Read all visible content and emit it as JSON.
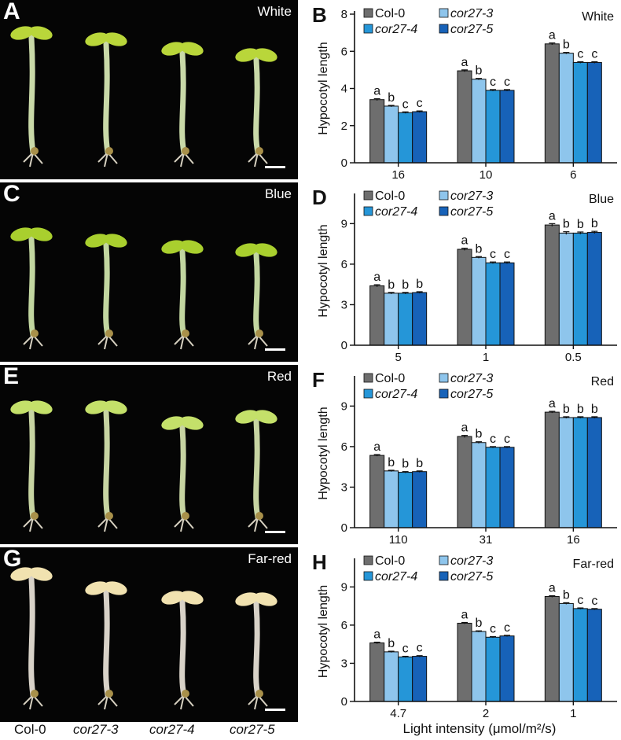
{
  "figure": {
    "xaxis_label": "Light intensity (μmol/m²/s)",
    "genotype_labels": [
      "Col-0",
      "cor27-3",
      "cor27-4",
      "cor27-5"
    ]
  },
  "photos": [
    {
      "label": "A",
      "condition": "White",
      "cotyledon_color": "#b9d63a",
      "hypocotyl_color": "#c9d9a8"
    },
    {
      "label": "C",
      "condition": "Blue",
      "cotyledon_color": "#a9cf2e",
      "hypocotyl_color": "#c2d6a0"
    },
    {
      "label": "E",
      "condition": "Red",
      "cotyledon_color": "#c4e06a",
      "hypocotyl_color": "#c7d4a2"
    },
    {
      "label": "G",
      "condition": "Far-red",
      "cotyledon_color": "#f1e2b0",
      "hypocotyl_color": "#d8d2c8"
    }
  ],
  "colors": {
    "Col-0": "#6e6e6e",
    "cor27-3": "#8ec5ec",
    "cor27-4": "#2596d8",
    "cor27-5": "#1762b8"
  },
  "chart_data": [
    {
      "panel": "B",
      "condition": "White",
      "type": "bar",
      "ylabel": "Hypocotyl length",
      "ylim": [
        0,
        8
      ],
      "yticks": [
        0,
        2,
        4,
        6,
        8
      ],
      "categories": [
        "16",
        "10",
        "6"
      ],
      "series": [
        {
          "name": "Col-0",
          "values": [
            3.4,
            4.95,
            6.4
          ],
          "errors": [
            0.05,
            0.05,
            0.05
          ],
          "letters": [
            "a",
            "a",
            "a"
          ]
        },
        {
          "name": "cor27-3",
          "values": [
            3.05,
            4.5,
            5.9
          ],
          "errors": [
            0.04,
            0.04,
            0.04
          ],
          "letters": [
            "b",
            "b",
            "b"
          ]
        },
        {
          "name": "cor27-4",
          "values": [
            2.7,
            3.9,
            5.4
          ],
          "errors": [
            0.04,
            0.04,
            0.04
          ],
          "letters": [
            "c",
            "c",
            "c"
          ]
        },
        {
          "name": "cor27-5",
          "values": [
            2.75,
            3.9,
            5.4
          ],
          "errors": [
            0.04,
            0.04,
            0.04
          ],
          "letters": [
            "c",
            "c",
            "c"
          ]
        }
      ]
    },
    {
      "panel": "D",
      "condition": "Blue",
      "type": "bar",
      "ylabel": "Hypocotyl length",
      "ylim": [
        0,
        11
      ],
      "yticks": [
        0,
        3,
        6,
        9
      ],
      "categories": [
        "5",
        "1",
        "0.5"
      ],
      "series": [
        {
          "name": "Col-0",
          "values": [
            4.4,
            7.1,
            8.9
          ],
          "errors": [
            0.08,
            0.08,
            0.1
          ],
          "letters": [
            "a",
            "a",
            "a"
          ]
        },
        {
          "name": "cor27-3",
          "values": [
            3.85,
            6.5,
            8.3
          ],
          "errors": [
            0.06,
            0.06,
            0.1
          ],
          "letters": [
            "b",
            "b",
            "b"
          ]
        },
        {
          "name": "cor27-4",
          "values": [
            3.85,
            6.1,
            8.3
          ],
          "errors": [
            0.06,
            0.06,
            0.08
          ],
          "letters": [
            "b",
            "c",
            "b"
          ]
        },
        {
          "name": "cor27-5",
          "values": [
            3.9,
            6.1,
            8.35
          ],
          "errors": [
            0.06,
            0.06,
            0.08
          ],
          "letters": [
            "b",
            "c",
            "b"
          ]
        }
      ]
    },
    {
      "panel": "F",
      "condition": "Red",
      "type": "bar",
      "ylabel": "Hypocotyl length",
      "ylim": [
        0,
        11
      ],
      "yticks": [
        0,
        3,
        6,
        9
      ],
      "categories": [
        "110",
        "31",
        "16"
      ],
      "series": [
        {
          "name": "Col-0",
          "values": [
            5.35,
            6.75,
            8.55
          ],
          "errors": [
            0.06,
            0.08,
            0.06
          ],
          "letters": [
            "a",
            "a",
            "a"
          ]
        },
        {
          "name": "cor27-3",
          "values": [
            4.2,
            6.3,
            8.15
          ],
          "errors": [
            0.05,
            0.06,
            0.06
          ],
          "letters": [
            "b",
            "b",
            "b"
          ]
        },
        {
          "name": "cor27-4",
          "values": [
            4.1,
            5.95,
            8.15
          ],
          "errors": [
            0.05,
            0.05,
            0.06
          ],
          "letters": [
            "b",
            "c",
            "b"
          ]
        },
        {
          "name": "cor27-5",
          "values": [
            4.15,
            5.95,
            8.15
          ],
          "errors": [
            0.05,
            0.05,
            0.06
          ],
          "letters": [
            "b",
            "c",
            "b"
          ]
        }
      ]
    },
    {
      "panel": "H",
      "condition": "Far-red",
      "type": "bar",
      "ylabel": "Hypocotyl length",
      "ylim": [
        0,
        11
      ],
      "yticks": [
        0,
        3,
        6,
        9
      ],
      "categories": [
        "4.7",
        "2",
        "1"
      ],
      "series": [
        {
          "name": "Col-0",
          "values": [
            4.6,
            6.15,
            8.25
          ],
          "errors": [
            0.06,
            0.06,
            0.06
          ],
          "letters": [
            "a",
            "a",
            "a"
          ]
        },
        {
          "name": "cor27-3",
          "values": [
            3.9,
            5.5,
            7.7
          ],
          "errors": [
            0.05,
            0.05,
            0.06
          ],
          "letters": [
            "b",
            "b",
            "b"
          ]
        },
        {
          "name": "cor27-4",
          "values": [
            3.5,
            5.05,
            7.3
          ],
          "errors": [
            0.05,
            0.05,
            0.05
          ],
          "letters": [
            "c",
            "c",
            "c"
          ]
        },
        {
          "name": "cor27-5",
          "values": [
            3.55,
            5.15,
            7.25
          ],
          "errors": [
            0.05,
            0.05,
            0.05
          ],
          "letters": [
            "c",
            "c",
            "c"
          ]
        }
      ]
    }
  ]
}
